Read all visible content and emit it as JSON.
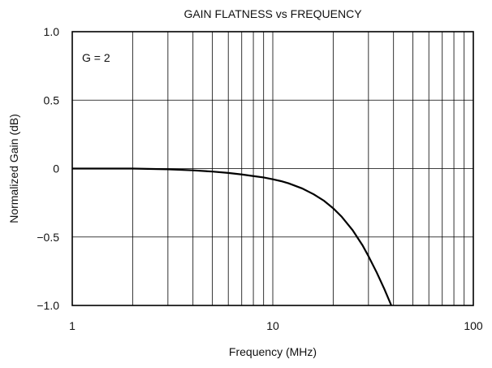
{
  "chart_data": {
    "type": "line",
    "title": "GAIN FLATNESS vs FREQUENCY",
    "xlabel": "Frequency (MHz)",
    "ylabel": "Normalized Gain (dB)",
    "x_scale": "log",
    "xlim": [
      1,
      100
    ],
    "ylim": [
      -1.0,
      1.0
    ],
    "grid": true,
    "x_ticks": [
      {
        "value": 1,
        "label": "1"
      },
      {
        "value": 10,
        "label": "10"
      },
      {
        "value": 100,
        "label": "100"
      }
    ],
    "y_ticks": [
      {
        "value": 1.0,
        "label": "1.0"
      },
      {
        "value": 0.5,
        "label": "0.5"
      },
      {
        "value": 0,
        "label": "0"
      },
      {
        "value": -0.5,
        "label": "−0.5"
      },
      {
        "value": -1.0,
        "label": "−1.0"
      }
    ],
    "annotations": [
      {
        "text": "G = 2"
      }
    ],
    "series": [
      {
        "x": [
          1,
          1.5,
          2,
          3,
          4,
          5,
          6,
          7,
          8,
          9,
          10,
          11,
          12,
          14,
          16,
          18,
          20,
          22,
          25,
          28,
          30,
          33,
          36,
          39
        ],
        "values": [
          0,
          0,
          0,
          -0.005,
          -0.013,
          -0.022,
          -0.032,
          -0.043,
          -0.055,
          -0.065,
          -0.078,
          -0.092,
          -0.108,
          -0.145,
          -0.188,
          -0.235,
          -0.29,
          -0.35,
          -0.45,
          -0.56,
          -0.64,
          -0.76,
          -0.88,
          -1.0
        ]
      }
    ]
  }
}
